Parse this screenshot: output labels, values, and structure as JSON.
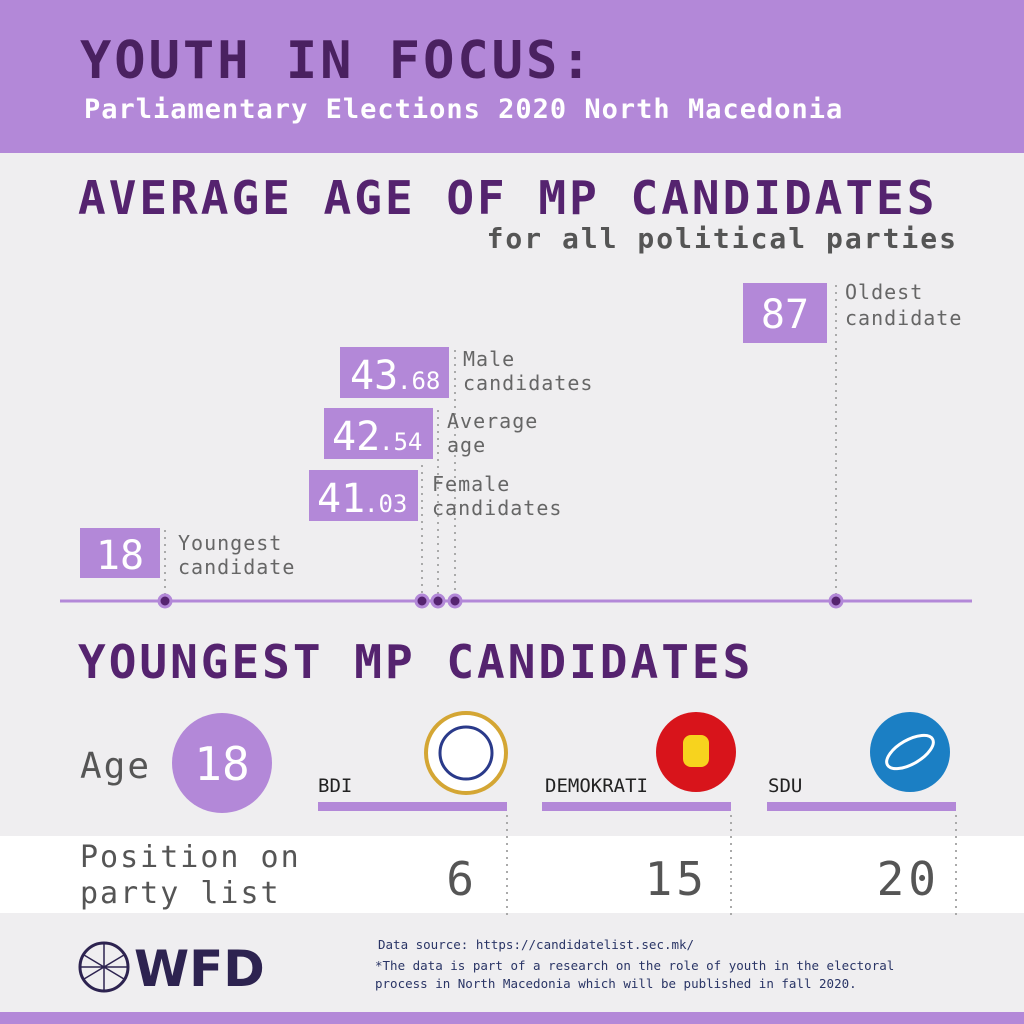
{
  "header": {
    "title": "YOUTH IN FOCUS:",
    "subtitle": "Parliamentary Elections 2020 North Macedonia"
  },
  "average_age": {
    "title": "AVERAGE AGE OF MP CANDIDATES",
    "subtitle": "for all political parties",
    "oldest": {
      "value": 87,
      "label": [
        "Oldest",
        "candidate"
      ]
    },
    "male": {
      "whole": "43",
      "fraction": ".68",
      "label": [
        "Male",
        "candidates"
      ]
    },
    "average": {
      "whole": "42",
      "fraction": ".54",
      "label": [
        "Average",
        "age"
      ]
    },
    "female": {
      "whole": "41",
      "fraction": ".03",
      "label": [
        "Female",
        "candidates"
      ]
    },
    "youngest": {
      "value": 18,
      "label": [
        "Youngest",
        "candidate"
      ]
    }
  },
  "youngest_candidates": {
    "title": "YOUNGEST MP CANDIDATES",
    "age_label": "Age",
    "age": 18,
    "position_label": [
      "Position on",
      "party list"
    ],
    "parties": [
      {
        "name": "BDI",
        "position": 6
      },
      {
        "name": "DEMOKRATI",
        "position": 15
      },
      {
        "name": "SDU",
        "position": 20
      }
    ]
  },
  "footer": {
    "logo": "WFD",
    "source": "Data source: https://candidatelist.sec.mk/",
    "note": [
      "*The data is part of a research on the role of youth in the electoral",
      "process in North Macedonia which will be published in fall 2020."
    ]
  }
}
